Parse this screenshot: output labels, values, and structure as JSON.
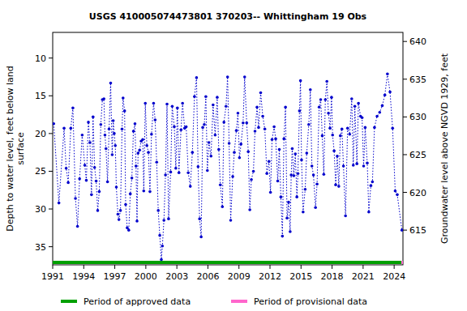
{
  "chart_data": {
    "type": "line",
    "title": "USGS 410005074473801 370203-- Whittingham 19 Obs",
    "y_label": [
      "Depth to water level, feet below land",
      "surface"
    ],
    "y2_label": "Groundwater level above NGVD 1929, feet",
    "xlim": [
      1991.0,
      2024.85
    ],
    "xticks": [
      1991,
      1994,
      1997,
      2000,
      2003,
      2006,
      2009,
      2012,
      2015,
      2018,
      2021,
      2024
    ],
    "ylim": [
      37.4,
      6.6
    ],
    "yticks": [
      10,
      15,
      20,
      25,
      30,
      35
    ],
    "y2lim": [
      610.4,
      641.2
    ],
    "y2ticks": [
      615,
      620,
      625,
      630,
      635,
      640
    ],
    "x": [
      1991.1,
      1991.6,
      1992.1,
      1992.3,
      1992.5,
      1992.75,
      1992.95,
      1993.2,
      1993.4,
      1993.6,
      1993.85,
      1994.1,
      1994.25,
      1994.45,
      1994.6,
      1994.75,
      1994.9,
      1995.05,
      1995.2,
      1995.35,
      1995.5,
      1995.65,
      1995.8,
      1995.95,
      1996.05,
      1996.15,
      1996.3,
      1996.45,
      1996.6,
      1996.75,
      1996.85,
      1996.95,
      1997.05,
      1997.15,
      1997.3,
      1997.4,
      1997.55,
      1997.7,
      1997.8,
      1997.95,
      1998.05,
      1998.2,
      1998.35,
      1998.5,
      1998.65,
      1998.8,
      1998.95,
      1999.05,
      1999.15,
      1999.25,
      1999.4,
      1999.55,
      1999.7,
      1999.8,
      1999.95,
      2000.1,
      2000.25,
      2000.4,
      2000.55,
      2000.75,
      2000.9,
      2001.05,
      2001.2,
      2001.35,
      2001.5,
      2001.6,
      2001.75,
      2001.9,
      2002.05,
      2002.2,
      2002.4,
      2002.55,
      2002.75,
      2002.9,
      2003.05,
      2003.2,
      2003.4,
      2003.55,
      2003.75,
      2003.9,
      2004.1,
      2004.3,
      2004.5,
      2004.7,
      2004.9,
      2005.05,
      2005.2,
      2005.35,
      2005.5,
      2005.65,
      2005.8,
      2005.95,
      2006.1,
      2006.3,
      2006.5,
      2006.7,
      2006.9,
      2007.05,
      2007.2,
      2007.4,
      2007.55,
      2007.75,
      2007.9,
      2008.05,
      2008.2,
      2008.4,
      2008.55,
      2008.75,
      2008.9,
      2009.05,
      2009.2,
      2009.4,
      2009.55,
      2009.75,
      2009.9,
      2010.05,
      2010.2,
      2010.4,
      2010.55,
      2010.75,
      2010.9,
      2011.1,
      2011.3,
      2011.5,
      2011.7,
      2011.9,
      2012.05,
      2012.2,
      2012.4,
      2012.55,
      2012.75,
      2012.9,
      2013.05,
      2013.2,
      2013.35,
      2013.5,
      2013.65,
      2013.8,
      2013.95,
      2014.05,
      2014.15,
      2014.3,
      2014.45,
      2014.6,
      2014.7,
      2014.85,
      2014.95,
      2015.05,
      2015.2,
      2015.4,
      2015.55,
      2015.75,
      2015.9,
      2016.05,
      2016.2,
      2016.4,
      2016.55,
      2016.75,
      2016.9,
      2017.05,
      2017.2,
      2017.35,
      2017.5,
      2017.65,
      2017.8,
      2017.95,
      2018.05,
      2018.2,
      2018.35,
      2018.5,
      2018.65,
      2018.8,
      2018.95,
      2019.1,
      2019.3,
      2019.5,
      2019.7,
      2019.9,
      2020.05,
      2020.2,
      2020.4,
      2020.55,
      2020.75,
      2020.9,
      2021.05,
      2021.2,
      2021.4,
      2021.55,
      2021.75,
      2021.9,
      2022.1,
      2022.35,
      2022.6,
      2022.85,
      2023.1,
      2023.35,
      2023.6,
      2023.85,
      2024.1,
      2024.3,
      2024.75
    ],
    "series": [
      {
        "name": "Depth to water level",
        "color": "#0000cc",
        "marker": "circle",
        "line_style": "dotted",
        "values": [
          18.7,
          29.2,
          19.3,
          24.6,
          26.5,
          19.3,
          16.6,
          28.6,
          32.3,
          26.0,
          20.2,
          24.2,
          26.2,
          18.5,
          21.2,
          28.1,
          17.8,
          24.5,
          26.3,
          30.2,
          27.7,
          18.8,
          15.5,
          15.4,
          20.2,
          22.0,
          26.4,
          19.4,
          13.3,
          22.8,
          18.3,
          20.0,
          21.6,
          27.1,
          30.7,
          31.4,
          30.2,
          19.4,
          15.3,
          17.0,
          29.4,
          32.5,
          32.8,
          28.0,
          25.9,
          19.7,
          18.7,
          24.3,
          31.6,
          22.6,
          22.2,
          21.0,
          20.8,
          27.6,
          16.0,
          21.6,
          22.5,
          27.7,
          20.1,
          16.0,
          18.2,
          23.8,
          30.2,
          33.5,
          36.7,
          34.9,
          31.5,
          25.5,
          16.1,
          31.3,
          25.1,
          16.4,
          19.1,
          24.6,
          16.6,
          25.2,
          19.5,
          16.0,
          19.3,
          19.1,
          25.2,
          27.0,
          22.5,
          15.1,
          12.6,
          24.4,
          31.3,
          33.7,
          19.2,
          18.8,
          15.1,
          24.9,
          21.2,
          23.0,
          16.2,
          20.2,
          15.2,
          22.1,
          26.8,
          29.7,
          18.5,
          16.4,
          12.5,
          21.3,
          31.5,
          25.7,
          22.5,
          19.6,
          17.3,
          23.2,
          21.4,
          18.6,
          12.5,
          18.6,
          22.4,
          30.1,
          26.1,
          25.0,
          19.7,
          16.5,
          19.2,
          14.6,
          17.7,
          19.4,
          25.3,
          23.7,
          27.8,
          20.8,
          19.1,
          20.7,
          26.3,
          22.1,
          28.4,
          33.6,
          20.7,
          16.5,
          31.2,
          29.1,
          33.0,
          25.5,
          22.0,
          25.6,
          22.7,
          28.4,
          25.3,
          17.0,
          13.0,
          23.5,
          30.4,
          27.4,
          22.6,
          18.8,
          14.2,
          24.3,
          25.5,
          29.8,
          26.7,
          16.5,
          15.5,
          20.3,
          25.4,
          15.5,
          13.1,
          17.3,
          19.3,
          15.2,
          20.2,
          22.3,
          26.8,
          23.0,
          27.0,
          20.3,
          19.4,
          24.3,
          30.9,
          19.3,
          20.1,
          15.4,
          24.2,
          16.4,
          24.0,
          16.0,
          17.7,
          17.9,
          24.3,
          19.2,
          23.9,
          30.4,
          26.9,
          26.4,
          19.2,
          17.7,
          17.2,
          16.3,
          14.9,
          12.1,
          14.5,
          19.3,
          27.6,
          28.1,
          32.8
        ]
      }
    ],
    "periods": [
      {
        "name": "Period of approved data",
        "color": "#00a000",
        "start": 1991.0,
        "end": 2024.7
      },
      {
        "name": "Period of provisional data",
        "color": "#ff66cc",
        "start": 2024.7,
        "end": 2024.85
      }
    ]
  }
}
